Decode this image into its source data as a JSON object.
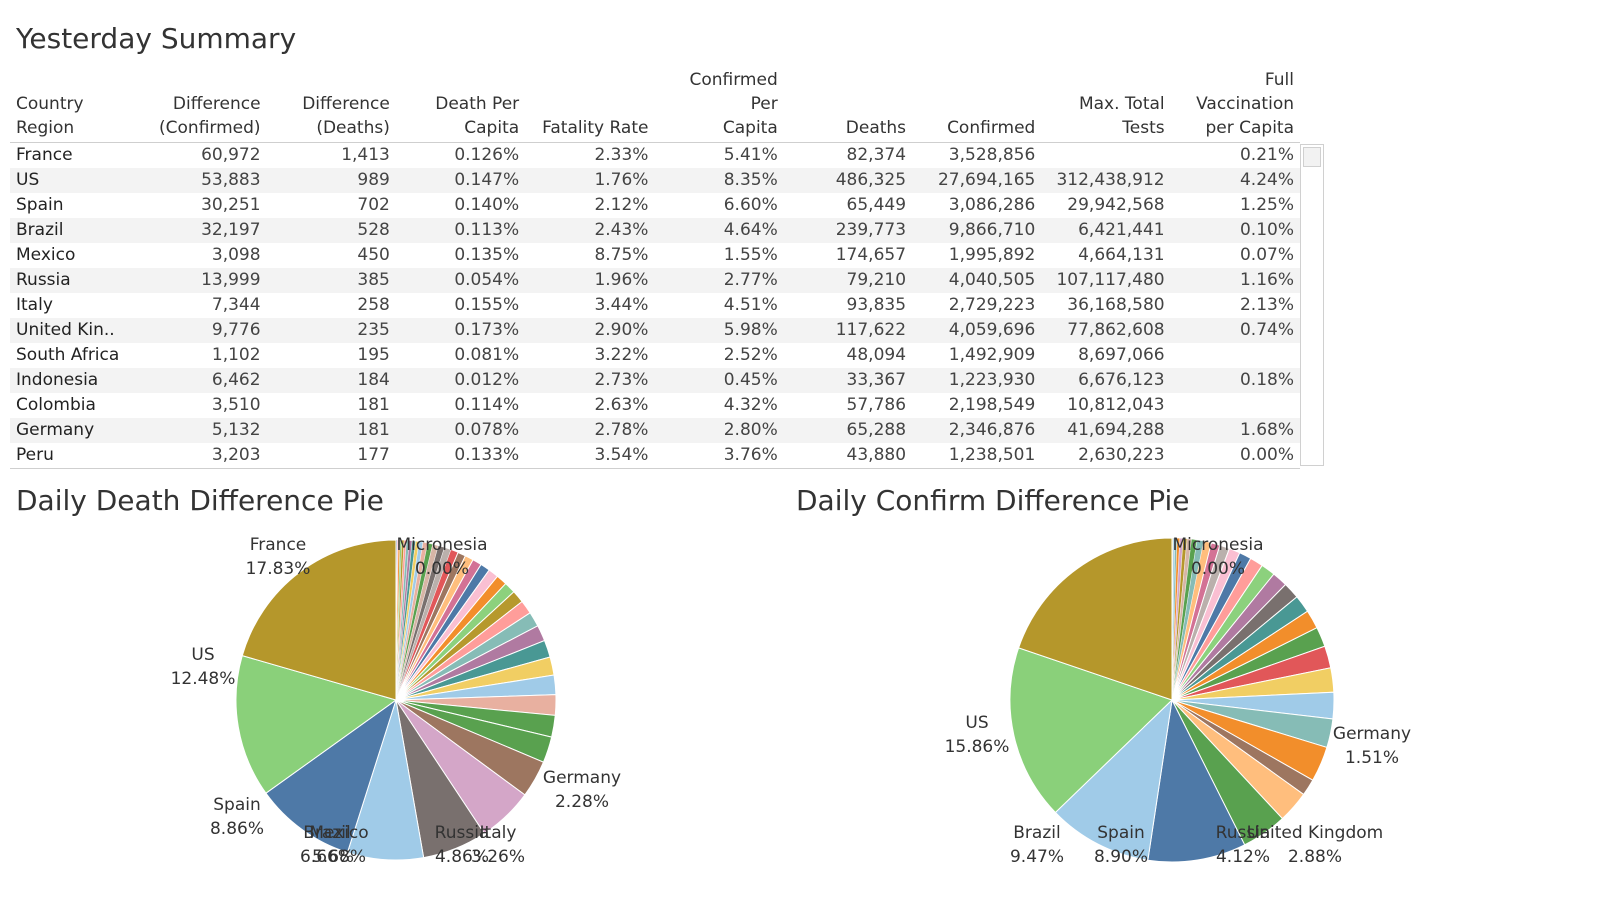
{
  "summary": {
    "title": "Yesterday Summary",
    "columns": [
      [
        "Country",
        "Region"
      ],
      [
        "Difference",
        "(Confirmed)"
      ],
      [
        "Difference",
        "(Deaths)"
      ],
      [
        "Death Per",
        "Capita"
      ],
      [
        "Fatality Rate"
      ],
      [
        "Confirmed Per",
        "Capita"
      ],
      [
        "Deaths"
      ],
      [
        "Confirmed"
      ],
      [
        "Max. Total",
        "Tests"
      ],
      [
        "Full",
        "Vaccination",
        "per Capita"
      ]
    ],
    "rows": [
      [
        "France",
        "60,972",
        "1,413",
        "0.126%",
        "2.33%",
        "5.41%",
        "82,374",
        "3,528,856",
        "",
        "0.21%"
      ],
      [
        "US",
        "53,883",
        "989",
        "0.147%",
        "1.76%",
        "8.35%",
        "486,325",
        "27,694,165",
        "312,438,912",
        "4.24%"
      ],
      [
        "Spain",
        "30,251",
        "702",
        "0.140%",
        "2.12%",
        "6.60%",
        "65,449",
        "3,086,286",
        "29,942,568",
        "1.25%"
      ],
      [
        "Brazil",
        "32,197",
        "528",
        "0.113%",
        "2.43%",
        "4.64%",
        "239,773",
        "9,866,710",
        "6,421,441",
        "0.10%"
      ],
      [
        "Mexico",
        "3,098",
        "450",
        "0.135%",
        "8.75%",
        "1.55%",
        "174,657",
        "1,995,892",
        "4,664,131",
        "0.07%"
      ],
      [
        "Russia",
        "13,999",
        "385",
        "0.054%",
        "1.96%",
        "2.77%",
        "79,210",
        "4,040,505",
        "107,117,480",
        "1.16%"
      ],
      [
        "Italy",
        "7,344",
        "258",
        "0.155%",
        "3.44%",
        "4.51%",
        "93,835",
        "2,729,223",
        "36,168,580",
        "2.13%"
      ],
      [
        "United Kin..",
        "9,776",
        "235",
        "0.173%",
        "2.90%",
        "5.98%",
        "117,622",
        "4,059,696",
        "77,862,608",
        "0.74%"
      ],
      [
        "South Africa",
        "1,102",
        "195",
        "0.081%",
        "3.22%",
        "2.52%",
        "48,094",
        "1,492,909",
        "8,697,066",
        ""
      ],
      [
        "Indonesia",
        "6,462",
        "184",
        "0.012%",
        "2.73%",
        "0.45%",
        "33,367",
        "1,223,930",
        "6,676,123",
        "0.18%"
      ],
      [
        "Colombia",
        "3,510",
        "181",
        "0.114%",
        "2.63%",
        "4.32%",
        "57,786",
        "2,198,549",
        "10,812,043",
        ""
      ],
      [
        "Germany",
        "5,132",
        "181",
        "0.078%",
        "2.78%",
        "2.80%",
        "65,288",
        "2,346,876",
        "41,694,288",
        "1.68%"
      ],
      [
        "Peru",
        "3,203",
        "177",
        "0.133%",
        "3.54%",
        "3.76%",
        "43,880",
        "1,238,501",
        "2,630,223",
        "0.00%"
      ]
    ]
  },
  "chart_data": [
    {
      "type": "pie",
      "title": "Daily Death Difference Pie",
      "labels": [
        "France",
        "US",
        "Spain",
        "Brazil",
        "Mexico",
        "Russia",
        "Italy",
        "Germany",
        "Micronesia"
      ],
      "values": [
        17.83,
        12.48,
        8.86,
        6.66,
        5.68,
        4.86,
        3.26,
        2.28,
        0.0
      ],
      "colors": [
        "#b5972b",
        "#8ad07a",
        "#4e79a7",
        "#a0cbe8",
        "#79706e",
        "#d4a6c8",
        "#9d7660",
        "#59a14f",
        "#e15759"
      ],
      "other_slices": [
        1.9,
        1.8,
        1.7,
        1.6,
        1.5,
        1.4,
        1.3,
        1.2,
        1.1,
        1.0,
        0.95,
        0.9,
        0.85,
        0.8,
        0.75,
        0.7,
        0.65,
        0.6,
        0.55,
        0.5,
        0.45,
        0.4,
        0.35,
        0.3,
        0.3,
        0.25,
        0.25,
        0.2,
        0.2,
        0.15,
        0.15,
        0.1,
        0.1
      ],
      "other_colors": [
        "#59a14f",
        "#e8b0a0",
        "#a0cbe8",
        "#f1ce63",
        "#499894",
        "#b07aa1",
        "#86bcb6",
        "#ff9d9a",
        "#b6992d",
        "#8cd17d",
        "#f28e2b",
        "#fabfd2",
        "#4e79a7",
        "#d37295",
        "#ffbe7d",
        "#9d7660",
        "#e15759",
        "#bab0ac",
        "#79706e",
        "#d7b5a6"
      ]
    },
    {
      "type": "pie",
      "title": "Daily Confirm Difference Pie",
      "labels": [
        "US",
        "Brazil",
        "Spain",
        "Russia",
        "United Kingdom",
        "Germany",
        "Micronesia"
      ],
      "values": [
        15.86,
        9.47,
        8.9,
        4.12,
        2.88,
        1.51,
        0.0
      ],
      "colors": [
        "#8ad07a",
        "#a0cbe8",
        "#4e79a7",
        "#59a14f",
        "#ffbe7d",
        "#9d7660",
        "#e15759"
      ],
      "other_slices": [
        18.0,
        4.5,
        3.2,
        2.6,
        2.4,
        2.2,
        2.0,
        1.8,
        1.7,
        1.6,
        1.5,
        1.4,
        1.3,
        1.2,
        1.1,
        1.0,
        0.9,
        0.8,
        0.7,
        0.6,
        0.5,
        0.4,
        0.35,
        0.3,
        0.25,
        0.2,
        0.15,
        0.1
      ],
      "other_colors": [
        "#b5972b",
        "#d4a6c8",
        "#f28e2b",
        "#86bcb6",
        "#a0cbe8",
        "#f1ce63",
        "#e15759",
        "#59a14f",
        "#f28e2b",
        "#499894",
        "#79706e",
        "#b07aa1",
        "#8cd17d",
        "#ff9d9a",
        "#4e79a7",
        "#fabfd2",
        "#bab0ac",
        "#d37295",
        "#ffbe7d",
        "#86bcb6",
        "#59a14f",
        "#d7b5a6"
      ]
    }
  ],
  "pie_labels": {
    "death": [
      {
        "name": "France",
        "pct": "17.83%"
      },
      {
        "name": "US",
        "pct": "12.48%"
      },
      {
        "name": "Spain",
        "pct": "8.86%"
      },
      {
        "name": "Brazil",
        "pct": "6.66%"
      },
      {
        "name": "Mexico",
        "pct": "5.68%"
      },
      {
        "name": "Russia",
        "pct": "4.86%"
      },
      {
        "name": "Italy",
        "pct": "3.26%"
      },
      {
        "name": "Germany",
        "pct": "2.28%"
      },
      {
        "name": "Micronesia",
        "pct": "0.00%"
      }
    ],
    "confirm": [
      {
        "name": "US",
        "pct": "15.86%"
      },
      {
        "name": "Brazil",
        "pct": "9.47%"
      },
      {
        "name": "Spain",
        "pct": "8.90%"
      },
      {
        "name": "Russia",
        "pct": "4.12%"
      },
      {
        "name": "United Kingdom",
        "pct": "2.88%"
      },
      {
        "name": "Germany",
        "pct": "1.51%"
      },
      {
        "name": "Micronesia",
        "pct": "0.00%"
      }
    ]
  }
}
